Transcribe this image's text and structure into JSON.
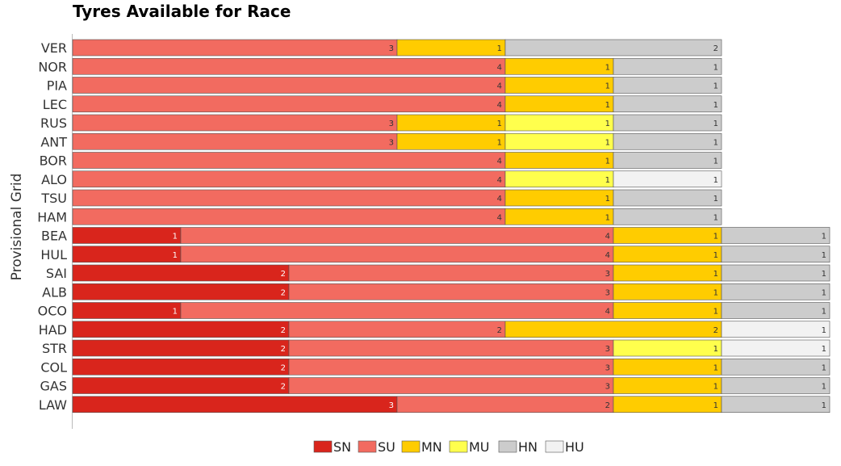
{
  "chart_data": {
    "type": "bar",
    "stacked": true,
    "orientation": "horizontal",
    "title": "Tyres Available for Race",
    "ylabel": "Provisional Grid",
    "xlabel": "",
    "xlim": [
      0,
      8
    ],
    "categories": [
      "VER",
      "NOR",
      "PIA",
      "LEC",
      "RUS",
      "ANT",
      "BOR",
      "ALO",
      "TSU",
      "HAM",
      "BEA",
      "HUL",
      "SAI",
      "ALB",
      "OCO",
      "HAD",
      "STR",
      "COL",
      "GAS",
      "LAW"
    ],
    "series": [
      {
        "name": "SN",
        "color": "#d9251c",
        "values": [
          0,
          0,
          0,
          0,
          0,
          0,
          0,
          0,
          0,
          0,
          1,
          1,
          2,
          2,
          1,
          2,
          2,
          2,
          2,
          3
        ]
      },
      {
        "name": "SU",
        "color": "#f26b60",
        "values": [
          3,
          4,
          4,
          4,
          3,
          3,
          4,
          4,
          4,
          4,
          4,
          4,
          3,
          3,
          4,
          2,
          3,
          3,
          3,
          2
        ]
      },
      {
        "name": "MN",
        "color": "#ffcc00",
        "values": [
          1,
          1,
          1,
          1,
          1,
          1,
          1,
          0,
          1,
          1,
          1,
          1,
          1,
          1,
          1,
          2,
          0,
          1,
          1,
          1
        ]
      },
      {
        "name": "MU",
        "color": "#ffff4d",
        "values": [
          0,
          0,
          0,
          0,
          1,
          1,
          0,
          1,
          0,
          0,
          0,
          0,
          0,
          0,
          0,
          0,
          1,
          0,
          0,
          0
        ]
      },
      {
        "name": "HN",
        "color": "#cccccc",
        "values": [
          2,
          1,
          1,
          1,
          1,
          1,
          1,
          0,
          1,
          1,
          1,
          1,
          1,
          1,
          1,
          0,
          0,
          1,
          1,
          1
        ]
      },
      {
        "name": "HU",
        "color": "#f2f2f2",
        "values": [
          0,
          0,
          0,
          0,
          0,
          0,
          0,
          1,
          0,
          0,
          0,
          0,
          0,
          0,
          0,
          1,
          1,
          0,
          0,
          0
        ]
      }
    ],
    "grid": false,
    "legend_position": "bottom-center",
    "value_labels": "inside-end"
  }
}
